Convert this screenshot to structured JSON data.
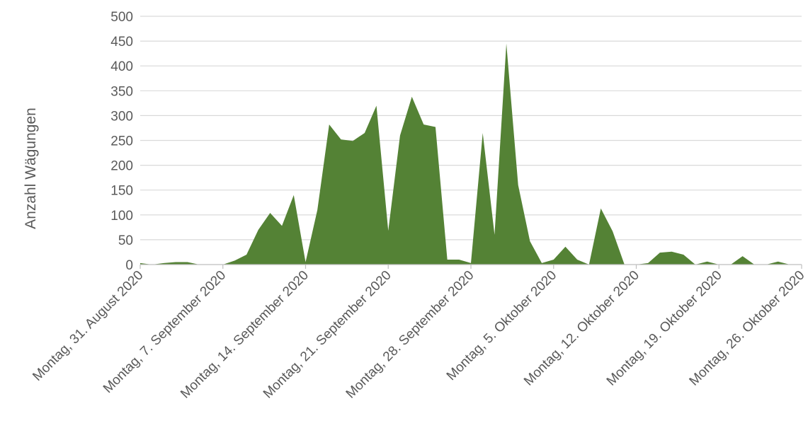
{
  "chart_data": {
    "type": "area",
    "ylabel": "Anzahl Wägungen",
    "xlabel": "",
    "ylim": [
      0,
      500
    ],
    "y_ticks": [
      0,
      50,
      100,
      150,
      200,
      250,
      300,
      350,
      400,
      450,
      500
    ],
    "x_ticks": [
      "Montag, 31. August 2020",
      "Montag, 7. September 2020",
      "Montag, 14. September 2020",
      "Montag, 21. September 2020",
      "Montag, 28. September 2020",
      "Montag, 5. Oktober 2020",
      "Montag, 12. Oktober 2020",
      "Montag, 19. Oktober 2020",
      "Montag, 26. Oktober 2020"
    ],
    "x_range": [
      "2020-08-31",
      "2020-10-26"
    ],
    "grid": true,
    "colors": {
      "fill": "#548235",
      "grid": "#d9d9d9",
      "text": "#595959"
    },
    "series": [
      {
        "x": [
          "2020-08-31",
          "2020-09-01",
          "2020-09-02",
          "2020-09-03",
          "2020-09-04",
          "2020-09-05",
          "2020-09-06",
          "2020-09-07",
          "2020-09-08",
          "2020-09-09",
          "2020-09-10",
          "2020-09-11",
          "2020-09-12",
          "2020-09-13",
          "2020-09-14",
          "2020-09-15",
          "2020-09-16",
          "2020-09-17",
          "2020-09-18",
          "2020-09-19",
          "2020-09-20",
          "2020-09-21",
          "2020-09-22",
          "2020-09-23",
          "2020-09-24",
          "2020-09-25",
          "2020-09-26",
          "2020-09-27",
          "2020-09-28",
          "2020-09-29",
          "2020-09-30",
          "2020-10-01",
          "2020-10-02",
          "2020-10-03",
          "2020-10-04",
          "2020-10-05",
          "2020-10-06",
          "2020-10-07",
          "2020-10-08",
          "2020-10-09",
          "2020-10-10",
          "2020-10-11",
          "2020-10-12",
          "2020-10-13",
          "2020-10-14",
          "2020-10-15",
          "2020-10-16",
          "2020-10-17",
          "2020-10-18",
          "2020-10-19",
          "2020-10-20",
          "2020-10-21",
          "2020-10-22",
          "2020-10-23",
          "2020-10-24",
          "2020-10-25",
          "2020-10-26"
        ],
        "values": [
          3,
          0,
          3,
          5,
          5,
          0,
          0,
          0,
          8,
          20,
          70,
          104,
          78,
          140,
          5,
          110,
          282,
          252,
          249,
          265,
          320,
          68,
          260,
          338,
          282,
          277,
          10,
          10,
          3,
          265,
          60,
          445,
          160,
          47,
          3,
          10,
          36,
          10,
          0,
          113,
          67,
          0,
          0,
          3,
          24,
          26,
          20,
          0,
          6,
          0,
          0,
          17,
          0,
          0,
          6,
          0,
          0
        ]
      }
    ]
  }
}
